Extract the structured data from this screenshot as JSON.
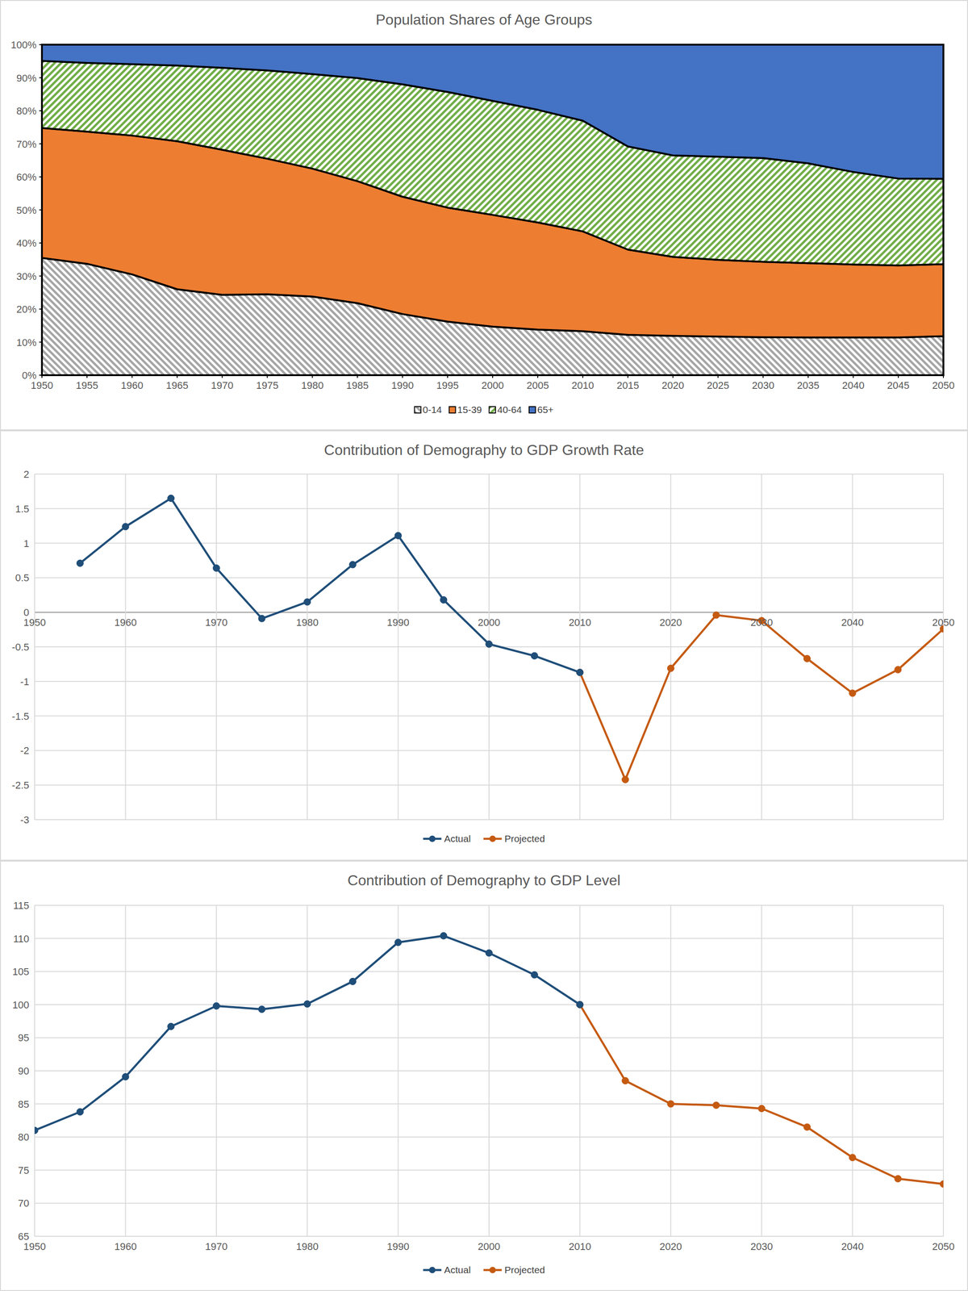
{
  "chart_data": [
    {
      "type": "area",
      "stacked": true,
      "title": "Population Shares of Age Groups",
      "x": [
        1950,
        1955,
        1960,
        1965,
        1970,
        1975,
        1980,
        1985,
        1990,
        1995,
        2000,
        2005,
        2010,
        2015,
        2020,
        2025,
        2030,
        2035,
        2040,
        2045,
        2050
      ],
      "xlim": [
        1950,
        2050
      ],
      "xticks": [
        1950,
        1955,
        1960,
        1965,
        1970,
        1975,
        1980,
        1985,
        1990,
        1995,
        2000,
        2005,
        2010,
        2015,
        2020,
        2025,
        2030,
        2035,
        2040,
        2045,
        2050
      ],
      "ylim": [
        0,
        100
      ],
      "yticks": [
        {
          "value": 0,
          "label": "0%"
        },
        {
          "value": 10,
          "label": "10%"
        },
        {
          "value": 20,
          "label": "20%"
        },
        {
          "value": 30,
          "label": "30%"
        },
        {
          "value": 40,
          "label": "40%"
        },
        {
          "value": 50,
          "label": "50%"
        },
        {
          "value": 60,
          "label": "60%"
        },
        {
          "value": 70,
          "label": "70%"
        },
        {
          "value": 80,
          "label": "80%"
        },
        {
          "value": 90,
          "label": "90%"
        },
        {
          "value": 100,
          "label": "100%"
        }
      ],
      "grid": false,
      "legend": "bottom",
      "series": [
        {
          "name": "0-14",
          "color": "#a5a5a5",
          "values": [
            35.5,
            33.7,
            30.5,
            26.0,
            24.3,
            24.5,
            23.8,
            21.8,
            18.5,
            16.2,
            14.7,
            13.8,
            13.3,
            12.2,
            11.9,
            11.7,
            11.5,
            11.4,
            11.4,
            11.4,
            11.8
          ]
        },
        {
          "name": "15-39",
          "color": "#ed7d31",
          "values": [
            39.3,
            40.0,
            42.0,
            44.8,
            43.9,
            41.0,
            38.7,
            36.9,
            35.5,
            34.5,
            33.8,
            32.4,
            30.2,
            25.8,
            23.9,
            23.2,
            22.8,
            22.5,
            22.1,
            21.8,
            21.8
          ]
        },
        {
          "name": "40-64",
          "color": "#70ad47",
          "values": [
            20.3,
            20.8,
            21.6,
            22.9,
            24.8,
            26.7,
            28.6,
            31.2,
            34.0,
            35.0,
            34.5,
            34.1,
            33.5,
            31.2,
            30.7,
            31.2,
            31.4,
            30.2,
            28.0,
            26.3,
            25.8
          ]
        },
        {
          "name": "65+",
          "color": "#4472c4",
          "values": [
            4.9,
            5.5,
            5.9,
            6.3,
            7.0,
            7.8,
            8.9,
            10.1,
            12.0,
            14.3,
            17.0,
            19.7,
            23.0,
            30.8,
            33.5,
            33.9,
            34.3,
            35.9,
            38.5,
            40.5,
            40.6
          ]
        }
      ]
    },
    {
      "type": "line",
      "title": "Contribution of Demography to GDP Growth Rate",
      "x": [
        1950,
        1955,
        1960,
        1965,
        1970,
        1975,
        1980,
        1985,
        1990,
        1995,
        2000,
        2005,
        2010,
        2015,
        2020,
        2025,
        2030,
        2035,
        2040,
        2045,
        2050
      ],
      "xlim": [
        1950,
        2050
      ],
      "xticks": [
        1950,
        1960,
        1970,
        1980,
        1990,
        2000,
        2010,
        2020,
        2030,
        2040,
        2050
      ],
      "ylim": [
        -3,
        2
      ],
      "yticks": [
        -3,
        -2.5,
        -2,
        -1.5,
        -1,
        -0.5,
        0,
        0.5,
        1,
        1.5,
        2
      ],
      "grid": true,
      "legend": "bottom",
      "series": [
        {
          "name": "Actual",
          "color": "#1f4e79",
          "marker": "circle",
          "values": [
            null,
            0.71,
            1.24,
            1.65,
            0.64,
            -0.09,
            0.15,
            0.69,
            1.11,
            0.18,
            -0.46,
            -0.63,
            -0.87,
            null,
            null,
            null,
            null,
            null,
            null,
            null,
            null
          ]
        },
        {
          "name": "Projected",
          "color": "#c55a11",
          "marker": "circle",
          "values": [
            null,
            null,
            null,
            null,
            null,
            null,
            null,
            null,
            null,
            null,
            null,
            null,
            -0.87,
            -2.42,
            -0.81,
            -0.04,
            -0.12,
            -0.67,
            -1.17,
            -0.83,
            -0.24
          ]
        }
      ]
    },
    {
      "type": "line",
      "title": "Contribution of Demography to GDP Level",
      "x": [
        1950,
        1955,
        1960,
        1965,
        1970,
        1975,
        1980,
        1985,
        1990,
        1995,
        2000,
        2005,
        2010,
        2015,
        2020,
        2025,
        2030,
        2035,
        2040,
        2045,
        2050
      ],
      "xlim": [
        1950,
        2050
      ],
      "xticks": [
        1950,
        1960,
        1970,
        1980,
        1990,
        2000,
        2010,
        2020,
        2030,
        2040,
        2050
      ],
      "ylim": [
        65,
        115
      ],
      "yticks": [
        65,
        70,
        75,
        80,
        85,
        90,
        95,
        100,
        105,
        110,
        115
      ],
      "grid": true,
      "legend": "bottom",
      "series": [
        {
          "name": "Actual",
          "color": "#1f4e79",
          "marker": "circle",
          "values": [
            81.0,
            83.8,
            89.1,
            96.7,
            99.8,
            99.3,
            100.1,
            103.5,
            109.4,
            110.4,
            107.8,
            104.5,
            100.0,
            null,
            null,
            null,
            null,
            null,
            null,
            null,
            null
          ]
        },
        {
          "name": "Projected",
          "color": "#c55a11",
          "marker": "circle",
          "values": [
            null,
            null,
            null,
            null,
            null,
            null,
            null,
            null,
            null,
            null,
            null,
            null,
            100.0,
            88.5,
            85.0,
            84.8,
            84.3,
            81.5,
            76.9,
            73.7,
            72.9
          ]
        }
      ]
    }
  ]
}
